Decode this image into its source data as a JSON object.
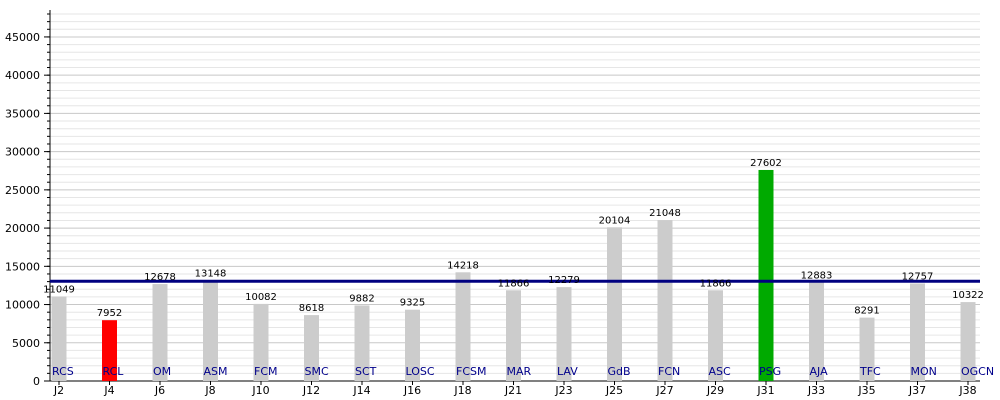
{
  "chart_data": {
    "type": "bar",
    "categories": [
      "J2",
      "J4",
      "J6",
      "J8",
      "J10",
      "J12",
      "J14",
      "J16",
      "J18",
      "J21",
      "J23",
      "J25",
      "J27",
      "J29",
      "J31",
      "J33",
      "J35",
      "J37",
      "J38"
    ],
    "teams": [
      "RCS",
      "RCL",
      "OM",
      "ASM",
      "FCM",
      "SMC",
      "SCT",
      "LOSC",
      "FCSM",
      "MAR",
      "LAV",
      "GdB",
      "FCN",
      "ASC",
      "PSG",
      "AJA",
      "TFC",
      "MON",
      "OGCN"
    ],
    "values": [
      11049,
      7952,
      12678,
      13148,
      10082,
      8618,
      9882,
      9325,
      14218,
      11866,
      12279,
      20104,
      21048,
      11866,
      27602,
      12883,
      8291,
      12757,
      10322
    ],
    "value_labels": [
      "11049",
      "7952",
      "12678",
      "13148",
      "10082",
      "8618",
      "9882",
      "9325",
      "14218",
      "11866",
      "12279",
      "20104",
      "21048",
      "11866",
      "27602",
      "12883",
      "8291",
      "12757",
      "10322"
    ],
    "colors": [
      "#cccccc",
      "#ff0000",
      "#cccccc",
      "#cccccc",
      "#cccccc",
      "#cccccc",
      "#cccccc",
      "#cccccc",
      "#cccccc",
      "#cccccc",
      "#cccccc",
      "#cccccc",
      "#cccccc",
      "#cccccc",
      "#00aa00",
      "#cccccc",
      "#cccccc",
      "#cccccc",
      "#cccccc"
    ],
    "average_line": 13048,
    "average_line_color": "#000080",
    "yticks": [
      0,
      5000,
      10000,
      15000,
      20000,
      25000,
      30000,
      35000,
      40000,
      45000
    ],
    "ylim": [
      0,
      48000
    ],
    "grid": true,
    "title": "",
    "xlabel": "",
    "ylabel": ""
  }
}
